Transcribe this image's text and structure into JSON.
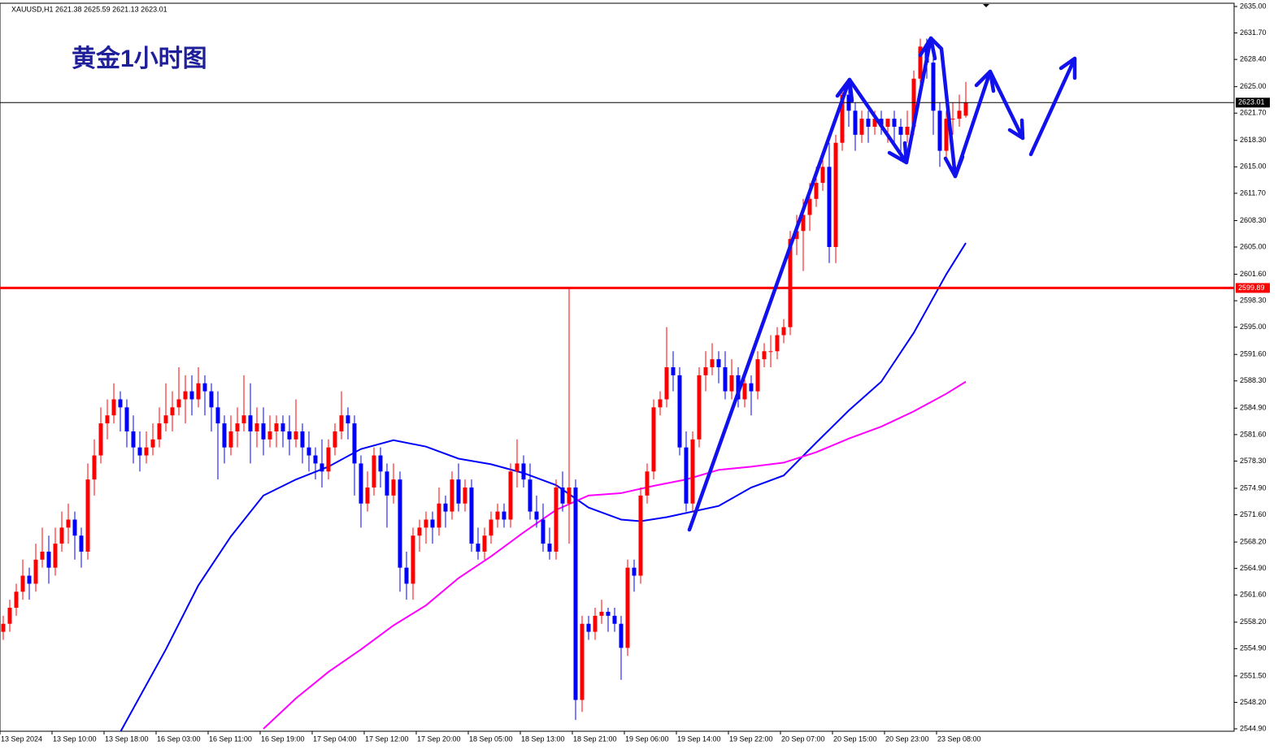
{
  "chart_data": {
    "type": "candlestick",
    "header": "XAUUSD,H1  2621.38 2625.59 2621.13 2623.01",
    "title": "黄金1小时图",
    "up_color": "#ff0000",
    "down_color": "#0000ff",
    "ylim": [
      2544.9,
      2635
    ],
    "yticks": [
      {
        "value": 2635,
        "label": "2635.00"
      },
      {
        "value": 2631.7,
        "label": "2631.70"
      },
      {
        "value": 2628.4,
        "label": "2628.40"
      },
      {
        "value": 2625,
        "label": "2625.00"
      },
      {
        "value": 2621.7,
        "label": "2621.70"
      },
      {
        "value": 2618.3,
        "label": "2618.30"
      },
      {
        "value": 2615,
        "label": "2615.00"
      },
      {
        "value": 2611.7,
        "label": "2611.70"
      },
      {
        "value": 2608.3,
        "label": "2608.30"
      },
      {
        "value": 2605,
        "label": "2605.00"
      },
      {
        "value": 2601.6,
        "label": "2601.60"
      },
      {
        "value": 2598.3,
        "label": "2598.30"
      },
      {
        "value": 2595,
        "label": "2595.00"
      },
      {
        "value": 2591.6,
        "label": "2591.60"
      },
      {
        "value": 2588.3,
        "label": "2588.30"
      },
      {
        "value": 2584.9,
        "label": "2584.90"
      },
      {
        "value": 2581.6,
        "label": "2581.60"
      },
      {
        "value": 2578.3,
        "label": "2578.30"
      },
      {
        "value": 2574.9,
        "label": "2574.90"
      },
      {
        "value": 2571.6,
        "label": "2571.60"
      },
      {
        "value": 2568.2,
        "label": "2568.20"
      },
      {
        "value": 2564.9,
        "label": "2564.90"
      },
      {
        "value": 2561.6,
        "label": "2561.60"
      },
      {
        "value": 2558.2,
        "label": "2558.20"
      },
      {
        "value": 2554.9,
        "label": "2554.90"
      },
      {
        "value": 2551.5,
        "label": "2551.50"
      },
      {
        "value": 2548.2,
        "label": "2548.20"
      },
      {
        "value": 2544.9,
        "label": "2544.90"
      }
    ],
    "xticks": [
      {
        "value": 0,
        "label": "13 Sep 2024"
      },
      {
        "value": 8,
        "label": "13 Sep 10:00"
      },
      {
        "value": 16,
        "label": "13 Sep 18:00"
      },
      {
        "value": 24,
        "label": "16 Sep 03:00"
      },
      {
        "value": 32,
        "label": "16 Sep 11:00"
      },
      {
        "value": 40,
        "label": "16 Sep 19:00"
      },
      {
        "value": 48,
        "label": "17 Sep 04:00"
      },
      {
        "value": 56,
        "label": "17 Sep 12:00"
      },
      {
        "value": 64,
        "label": "17 Sep 20:00"
      },
      {
        "value": 72,
        "label": "18 Sep 05:00"
      },
      {
        "value": 80,
        "label": "18 Sep 13:00"
      },
      {
        "value": 88,
        "label": "18 Sep 21:00"
      },
      {
        "value": 96,
        "label": "19 Sep 06:00"
      },
      {
        "value": 104,
        "label": "19 Sep 14:00"
      },
      {
        "value": 112,
        "label": "19 Sep 22:00"
      },
      {
        "value": 120,
        "label": "20 Sep 07:00"
      },
      {
        "value": 128,
        "label": "20 Sep 15:00"
      },
      {
        "value": 136,
        "label": "20 Sep 23:00"
      },
      {
        "value": 144,
        "label": "23 Sep 08:00"
      }
    ],
    "candles": [
      [
        2557,
        2559,
        2556,
        2558
      ],
      [
        2558,
        2561,
        2557,
        2560
      ],
      [
        2560,
        2563,
        2559,
        2562
      ],
      [
        2562,
        2566,
        2561,
        2564
      ],
      [
        2564,
        2565,
        2561,
        2563
      ],
      [
        2563,
        2568,
        2562,
        2566
      ],
      [
        2566,
        2570,
        2565,
        2567
      ],
      [
        2567,
        2569,
        2563,
        2565
      ],
      [
        2565,
        2570,
        2564,
        2568
      ],
      [
        2568,
        2572,
        2567,
        2570
      ],
      [
        2570,
        2573,
        2568,
        2571
      ],
      [
        2571,
        2572,
        2566,
        2569
      ],
      [
        2569,
        2570,
        2565,
        2567
      ],
      [
        2567,
        2578,
        2566,
        2576
      ],
      [
        2576,
        2581,
        2574,
        2579
      ],
      [
        2579,
        2585,
        2578,
        2583
      ],
      [
        2583,
        2586,
        2581,
        2584
      ],
      [
        2584,
        2588,
        2583,
        2586
      ],
      [
        2586,
        2587,
        2582,
        2585
      ],
      [
        2585,
        2586,
        2580,
        2582
      ],
      [
        2582,
        2584,
        2578,
        2580
      ],
      [
        2580,
        2582,
        2577,
        2579
      ],
      [
        2579,
        2582,
        2578,
        2580
      ],
      [
        2580,
        2583,
        2579,
        2581
      ],
      [
        2581,
        2585,
        2580,
        2583
      ],
      [
        2583,
        2588,
        2582,
        2584
      ],
      [
        2584,
        2587,
        2582,
        2585
      ],
      [
        2585,
        2590,
        2584,
        2586
      ],
      [
        2586,
        2589,
        2583,
        2587
      ],
      [
        2587,
        2589,
        2584,
        2586
      ],
      [
        2586,
        2590,
        2585,
        2588
      ],
      [
        2588,
        2589,
        2584,
        2587
      ],
      [
        2587,
        2588,
        2582,
        2585
      ],
      [
        2585,
        2587,
        2576,
        2583
      ],
      [
        2583,
        2584,
        2578,
        2580
      ],
      [
        2580,
        2584,
        2579,
        2582
      ],
      [
        2582,
        2585,
        2580,
        2583
      ],
      [
        2583,
        2589,
        2582,
        2584
      ],
      [
        2584,
        2588,
        2578,
        2582
      ],
      [
        2582,
        2585,
        2580,
        2583
      ],
      [
        2583,
        2585,
        2579,
        2581
      ],
      [
        2581,
        2584,
        2580,
        2582
      ],
      [
        2582,
        2584,
        2580,
        2583
      ],
      [
        2583,
        2584,
        2580,
        2582
      ],
      [
        2582,
        2584,
        2579,
        2581
      ],
      [
        2581,
        2586,
        2580,
        2582
      ],
      [
        2582,
        2583,
        2578,
        2580
      ],
      [
        2580,
        2582,
        2577,
        2579
      ],
      [
        2579,
        2580,
        2576,
        2578
      ],
      [
        2578,
        2581,
        2575,
        2577
      ],
      [
        2577,
        2581,
        2576,
        2580
      ],
      [
        2580,
        2583,
        2579,
        2582
      ],
      [
        2582,
        2587,
        2581,
        2584
      ],
      [
        2584,
        2585,
        2581,
        2583
      ],
      [
        2583,
        2584,
        2574,
        2578
      ],
      [
        2578,
        2579,
        2570,
        2573
      ],
      [
        2573,
        2577,
        2572,
        2575
      ],
      [
        2575,
        2580,
        2574,
        2579
      ],
      [
        2579,
        2580,
        2575,
        2577
      ],
      [
        2577,
        2578,
        2570,
        2574
      ],
      [
        2574,
        2578,
        2573,
        2576
      ],
      [
        2576,
        2577,
        2562,
        2565
      ],
      [
        2565,
        2567,
        2561,
        2563
      ],
      [
        2563,
        2570,
        2561,
        2569
      ],
      [
        2569,
        2571,
        2567,
        2570
      ],
      [
        2570,
        2572,
        2568,
        2571
      ],
      [
        2571,
        2572,
        2568,
        2570
      ],
      [
        2570,
        2575,
        2569,
        2573
      ],
      [
        2573,
        2574,
        2570,
        2572
      ],
      [
        2572,
        2577,
        2571,
        2576
      ],
      [
        2576,
        2578,
        2572,
        2573
      ],
      [
        2573,
        2576,
        2572,
        2575
      ],
      [
        2575,
        2576,
        2567,
        2568
      ],
      [
        2568,
        2570,
        2566,
        2567
      ],
      [
        2567,
        2570,
        2566,
        2569
      ],
      [
        2569,
        2572,
        2568,
        2571
      ],
      [
        2571,
        2573,
        2570,
        2572
      ],
      [
        2572,
        2573,
        2570,
        2571
      ],
      [
        2571,
        2578,
        2570,
        2577
      ],
      [
        2577,
        2581,
        2575,
        2578
      ],
      [
        2578,
        2579,
        2575,
        2576
      ],
      [
        2576,
        2578,
        2571,
        2572
      ],
      [
        2572,
        2574,
        2570,
        2571
      ],
      [
        2571,
        2573,
        2567,
        2568
      ],
      [
        2568,
        2570,
        2566,
        2567
      ],
      [
        2567,
        2576,
        2566,
        2575
      ],
      [
        2575,
        2577,
        2572,
        2573
      ],
      [
        2573,
        2600,
        2568,
        2575
      ],
      [
        2575,
        2576,
        2546,
        2548.5
      ],
      [
        2548.5,
        2559,
        2547,
        2558
      ],
      [
        2558,
        2559,
        2556,
        2557
      ],
      [
        2557,
        2560,
        2556,
        2559
      ],
      [
        2559,
        2561,
        2558,
        2559.5
      ],
      [
        2559.5,
        2560,
        2557,
        2559
      ],
      [
        2559,
        2560,
        2557,
        2558
      ],
      [
        2558,
        2559,
        2551,
        2555
      ],
      [
        2555,
        2566,
        2554,
        2565
      ],
      [
        2565,
        2566,
        2562,
        2564
      ],
      [
        2564,
        2575,
        2563,
        2574
      ],
      [
        2574,
        2578,
        2573,
        2577
      ],
      [
        2577,
        2586,
        2576,
        2585
      ],
      [
        2585,
        2587,
        2584,
        2586
      ],
      [
        2586,
        2595,
        2585,
        2590
      ],
      [
        2590,
        2592,
        2587,
        2589
      ],
      [
        2589,
        2590,
        2579,
        2580
      ],
      [
        2580,
        2582,
        2572,
        2573
      ],
      [
        2573,
        2582,
        2572,
        2581
      ],
      [
        2581,
        2590,
        2580,
        2589
      ],
      [
        2589,
        2592,
        2587,
        2590
      ],
      [
        2590,
        2593,
        2589,
        2591
      ],
      [
        2591,
        2592,
        2588,
        2590
      ],
      [
        2590,
        2592,
        2586,
        2587
      ],
      [
        2587,
        2591,
        2586,
        2589
      ],
      [
        2589,
        2590,
        2585,
        2586
      ],
      [
        2586,
        2589,
        2585,
        2588
      ],
      [
        2588,
        2589,
        2584,
        2587
      ],
      [
        2587,
        2592,
        2586,
        2591
      ],
      [
        2591,
        2593,
        2590,
        2592
      ],
      [
        2592,
        2594,
        2590,
        2592
      ],
      [
        2592,
        2595,
        2591,
        2594
      ],
      [
        2594,
        2596,
        2593,
        2595
      ],
      [
        2595,
        2607,
        2594,
        2606
      ],
      [
        2606,
        2609,
        2604,
        2607
      ],
      [
        2607,
        2611,
        2602,
        2609
      ],
      [
        2609,
        2613,
        2607,
        2611
      ],
      [
        2611,
        2615,
        2610,
        2613
      ],
      [
        2613,
        2617,
        2612,
        2615
      ],
      [
        2615,
        2618,
        2603,
        2605
      ],
      [
        2605,
        2619,
        2603,
        2618
      ],
      [
        2618,
        2625,
        2617,
        2624
      ],
      [
        2624,
        2625,
        2620,
        2622
      ],
      [
        2622,
        2623,
        2617,
        2619
      ],
      [
        2619,
        2622,
        2618,
        2621
      ],
      [
        2621,
        2622,
        2618,
        2620
      ],
      [
        2620,
        2622,
        2619,
        2621
      ],
      [
        2621,
        2622,
        2619,
        2620
      ],
      [
        2620,
        2621,
        2618,
        2621
      ],
      [
        2621,
        2622,
        2618,
        2620
      ],
      [
        2620,
        2621,
        2616,
        2619
      ],
      [
        2619,
        2622,
        2618,
        2620
      ],
      [
        2620,
        2627,
        2619,
        2626
      ],
      [
        2626,
        2631,
        2625,
        2630
      ],
      [
        2630,
        2631,
        2626,
        2628
      ],
      [
        2628,
        2629,
        2619,
        2622
      ],
      [
        2622,
        2623,
        2615,
        2617
      ],
      [
        2617,
        2622,
        2616,
        2621
      ],
      [
        2621,
        2623,
        2619,
        2621
      ],
      [
        2621,
        2624,
        2620,
        2622
      ],
      [
        2621.38,
        2625.59,
        2621.13,
        2623.01
      ]
    ],
    "moving_averages": [
      {
        "color": "#0000ff",
        "x": [
          18,
          25,
          30,
          35,
          40,
          45,
          50,
          55,
          60,
          65,
          70,
          75,
          80,
          85,
          90,
          95,
          98,
          102,
          106,
          110,
          115,
          120,
          125,
          130,
          135,
          140,
          145,
          148
        ],
        "values": [
          2544.5,
          2554.8,
          2562.8,
          2568.9,
          2574,
          2576,
          2577.6,
          2579.8,
          2580.9,
          2580.1,
          2578.6,
          2577.9,
          2576.8,
          2575.3,
          2572.5,
          2571,
          2570.8,
          2571.3,
          2572,
          2572.7,
          2575,
          2576.5,
          2580.6,
          2584.6,
          2588.2,
          2594.3,
          2601.6,
          2605.5
        ]
      },
      {
        "color": "#ff00ff",
        "x": [
          40,
          45,
          50,
          55,
          60,
          65,
          70,
          75,
          80,
          85,
          90,
          95,
          100,
          105,
          110,
          115,
          120,
          125,
          130,
          135,
          140,
          145,
          148
        ],
        "values": [
          2544.9,
          2548.7,
          2552,
          2554.8,
          2557.8,
          2560.3,
          2563.7,
          2566.4,
          2569.4,
          2572.2,
          2574,
          2574.3,
          2575.2,
          2576,
          2577.2,
          2577.6,
          2578.1,
          2579.4,
          2581.1,
          2582.6,
          2584.5,
          2586.7,
          2588.2
        ]
      }
    ],
    "price_lines": [
      {
        "value": 2623.01,
        "color": "#000000"
      },
      {
        "value": 2599.89,
        "color": "#ff0000"
      }
    ]
  }
}
